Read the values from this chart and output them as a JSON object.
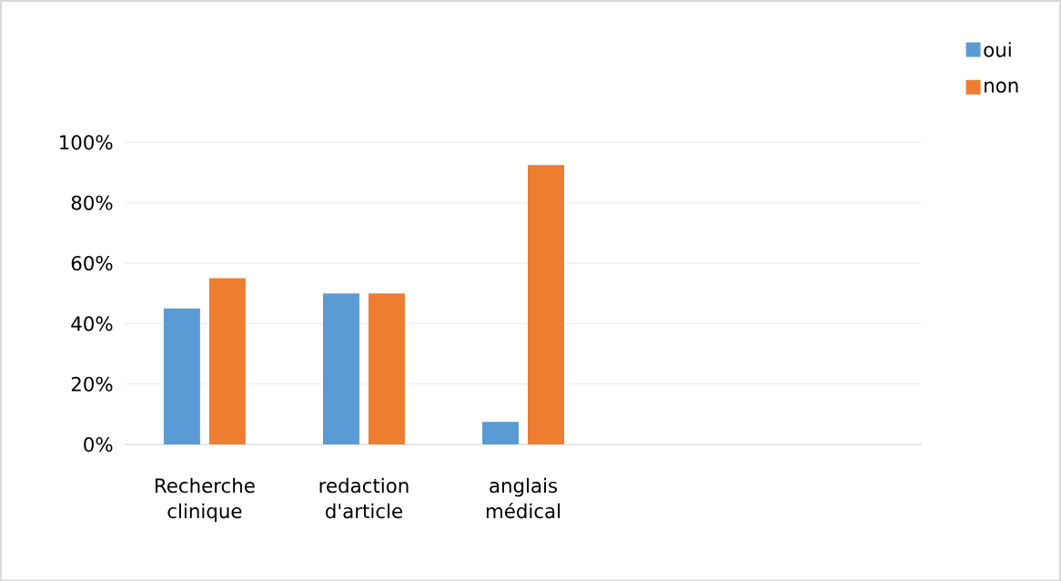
{
  "chart_data": {
    "type": "bar",
    "categories": [
      "Recherche clinique",
      "redaction d'article",
      "anglais médical",
      null,
      null
    ],
    "series": [
      {
        "name": "oui",
        "color": "#5b9bd5",
        "values": [
          45,
          50,
          7.5,
          null,
          null
        ]
      },
      {
        "name": "non",
        "color": "#ed7d31",
        "values": [
          55,
          50,
          92.5,
          null,
          null
        ]
      }
    ],
    "ylim": [
      0,
      100
    ],
    "yticks": [
      {
        "value": 0,
        "label": "0%"
      },
      {
        "value": 20,
        "label": "20%"
      },
      {
        "value": 40,
        "label": "40%"
      },
      {
        "value": 60,
        "label": "60%"
      },
      {
        "value": 80,
        "label": "80%"
      },
      {
        "value": 100,
        "label": "100%"
      }
    ],
    "grid": "y",
    "legend": "top right"
  }
}
